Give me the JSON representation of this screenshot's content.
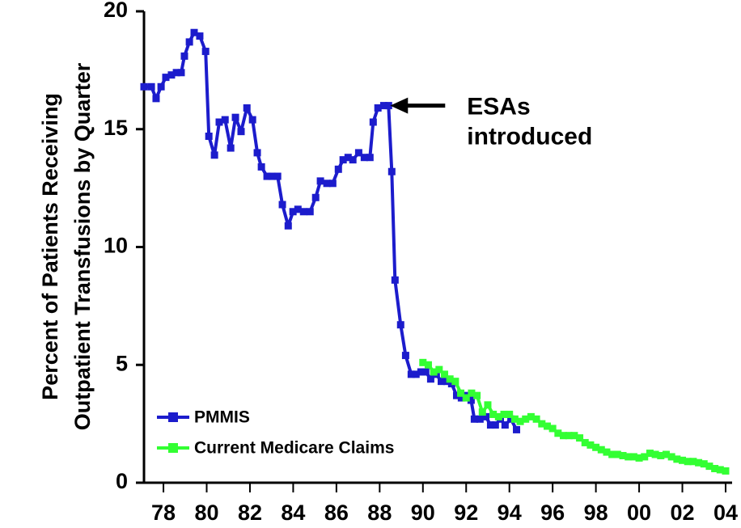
{
  "chart_data": {
    "type": "line",
    "ylabel": [
      "Percent of Patients Receiving",
      "Outpatient Transfusions by Quarter"
    ],
    "xlim": [
      1977.1,
      2004.3
    ],
    "xticks": [
      {
        "value": 1978,
        "label": "78"
      },
      {
        "value": 1980,
        "label": "80"
      },
      {
        "value": 1982,
        "label": "82"
      },
      {
        "value": 1984,
        "label": "84"
      },
      {
        "value": 1986,
        "label": "86"
      },
      {
        "value": 1988,
        "label": "88"
      },
      {
        "value": 1990,
        "label": "90"
      },
      {
        "value": 1992,
        "label": "92"
      },
      {
        "value": 1994,
        "label": "94"
      },
      {
        "value": 1996,
        "label": "96"
      },
      {
        "value": 1998,
        "label": "98"
      },
      {
        "value": 2000,
        "label": "00"
      },
      {
        "value": 2002,
        "label": "02"
      },
      {
        "value": 2004,
        "label": "04"
      }
    ],
    "ylim": [
      0,
      20
    ],
    "yticks": [
      0,
      5,
      10,
      15,
      20
    ],
    "legend": "lower left",
    "annotation": {
      "lines": [
        "ESAs",
        "introduced"
      ],
      "x": 1988.41,
      "y": 16.0
    },
    "series": [
      {
        "name": "PMMIS",
        "color": "#1c1ccc",
        "x": [
          1977.1,
          1977.44,
          1977.66,
          1977.89,
          1978.11,
          1978.37,
          1978.6,
          1978.82,
          1978.97,
          1979.2,
          1979.42,
          1979.68,
          1979.95,
          1980.1,
          1980.36,
          1980.58,
          1980.85,
          1981.11,
          1981.33,
          1981.59,
          1981.86,
          1982.12,
          1982.34,
          1982.53,
          1982.79,
          1983.02,
          1983.28,
          1983.5,
          1983.77,
          1983.99,
          1984.22,
          1984.48,
          1984.78,
          1985.04,
          1985.26,
          1985.56,
          1985.83,
          1986.09,
          1986.31,
          1986.54,
          1986.76,
          1987.03,
          1987.29,
          1987.55,
          1987.7,
          1987.92,
          1988.19,
          1988.41,
          1988.56,
          1988.71,
          1988.97,
          1989.2,
          1989.46,
          1989.68,
          1989.91,
          1990.13,
          1990.36,
          1990.62,
          1990.85,
          1991.11,
          1991.33,
          1991.56,
          1991.78,
          1992.01,
          1992.23,
          1992.38,
          1992.64,
          1992.91,
          1993.13,
          1993.35,
          1993.58,
          1993.8,
          1994.07,
          1994.33
        ],
        "values": [
          16.8,
          16.8,
          16.3,
          16.8,
          17.2,
          17.3,
          17.4,
          17.4,
          18.1,
          18.7,
          19.1,
          18.95,
          18.3,
          14.7,
          13.9,
          15.3,
          15.4,
          14.2,
          15.5,
          14.9,
          15.9,
          15.4,
          14.0,
          13.4,
          13.0,
          13.0,
          13.0,
          11.8,
          10.9,
          11.5,
          11.6,
          11.5,
          11.5,
          12.1,
          12.8,
          12.7,
          12.7,
          13.3,
          13.7,
          13.8,
          13.7,
          14.0,
          13.8,
          13.8,
          15.3,
          15.9,
          16.0,
          16.0,
          13.2,
          8.6,
          6.7,
          5.4,
          4.6,
          4.6,
          4.7,
          4.7,
          4.4,
          4.6,
          4.3,
          4.3,
          4.2,
          3.7,
          3.6,
          3.7,
          3.5,
          2.7,
          2.7,
          2.8,
          2.45,
          2.45,
          2.7,
          2.45,
          2.7,
          2.25
        ]
      },
      {
        "name": "Current Medicare Claims",
        "color": "#33ff33",
        "x": [
          1990.0,
          1990.25,
          1990.5,
          1990.75,
          1991.0,
          1991.25,
          1991.5,
          1991.75,
          1992.0,
          1992.25,
          1992.5,
          1992.75,
          1993.0,
          1993.25,
          1993.5,
          1993.75,
          1994.0,
          1994.25,
          1994.5,
          1994.75,
          1995.0,
          1995.25,
          1995.5,
          1995.75,
          1996.0,
          1996.25,
          1996.5,
          1996.75,
          1997.0,
          1997.25,
          1997.5,
          1997.75,
          1998.0,
          1998.25,
          1998.5,
          1998.75,
          1999.0,
          1999.25,
          1999.5,
          1999.75,
          2000.0,
          2000.25,
          2000.5,
          2000.75,
          2001.0,
          2001.25,
          2001.5,
          2001.75,
          2002.0,
          2002.25,
          2002.5,
          2002.75,
          2003.0,
          2003.25,
          2003.5,
          2003.75,
          2004.0
        ],
        "values": [
          5.1,
          5.0,
          4.7,
          4.8,
          4.6,
          4.4,
          4.3,
          3.8,
          3.6,
          3.8,
          3.7,
          3.0,
          3.3,
          2.9,
          2.8,
          2.9,
          2.9,
          2.7,
          2.6,
          2.7,
          2.8,
          2.7,
          2.5,
          2.4,
          2.3,
          2.1,
          2.0,
          2.0,
          2.0,
          1.9,
          1.7,
          1.6,
          1.5,
          1.4,
          1.3,
          1.2,
          1.2,
          1.15,
          1.1,
          1.1,
          1.05,
          1.1,
          1.25,
          1.2,
          1.15,
          1.2,
          1.1,
          1.0,
          0.95,
          0.9,
          0.9,
          0.85,
          0.8,
          0.7,
          0.6,
          0.55,
          0.5
        ]
      }
    ]
  }
}
